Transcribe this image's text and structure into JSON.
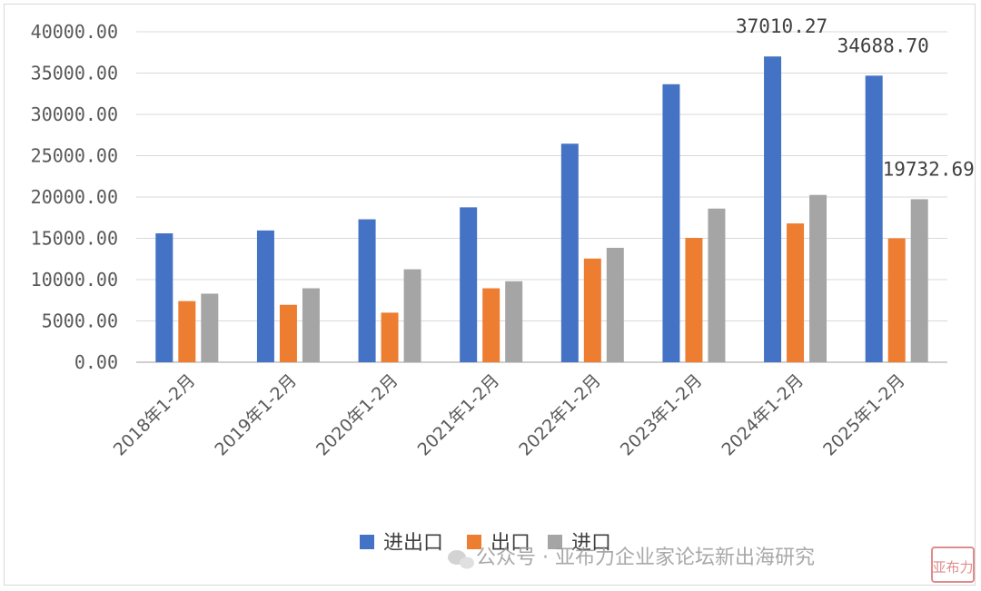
{
  "chart_data": {
    "type": "bar",
    "categories": [
      "2018年1-2月",
      "2019年1-2月",
      "2020年1-2月",
      "2021年1-2月",
      "2022年1-2月",
      "2023年1-2月",
      "2024年1-2月",
      "2025年1-2月"
    ],
    "series": [
      {
        "name": "进出口",
        "color": "#4472c4",
        "values": [
          15600,
          15950,
          17300,
          18750,
          26450,
          33650,
          37010.27,
          34688.7
        ]
      },
      {
        "name": "出口",
        "color": "#ed7d31",
        "values": [
          7400,
          6950,
          6000,
          8950,
          12550,
          15050,
          16800,
          15000
        ]
      },
      {
        "name": "进口",
        "color": "#a5a5a5",
        "values": [
          8300,
          8950,
          11250,
          9800,
          13850,
          18600,
          20250,
          19732.69
        ]
      }
    ],
    "ylim": [
      0,
      40000
    ],
    "yticks": [
      "0.00",
      "5000.00",
      "10000.00",
      "15000.00",
      "20000.00",
      "25000.00",
      "30000.00",
      "35000.00",
      "40000.00"
    ],
    "data_labels": [
      {
        "series": 0,
        "index": 6,
        "text": "37010.27"
      },
      {
        "series": 0,
        "index": 7,
        "text": "34688.70"
      },
      {
        "series": 2,
        "index": 7,
        "text": "19732.69"
      }
    ],
    "grid": true,
    "legend_position": "bottom"
  },
  "watermark": {
    "text": "公众号 · 亚布力企业家论坛新出海研究",
    "seal_text": "亚布力"
  }
}
